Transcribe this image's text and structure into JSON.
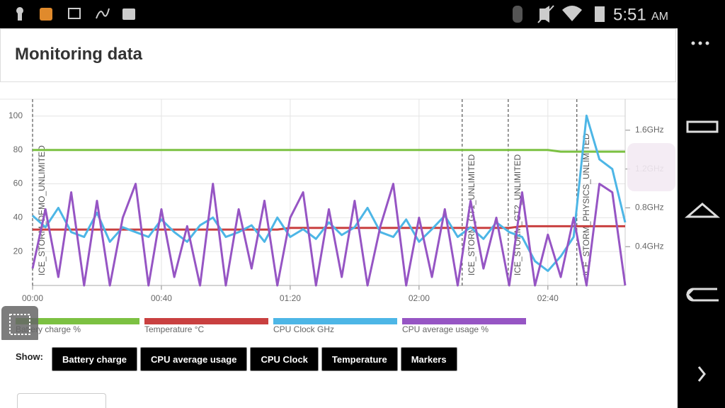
{
  "status_bar": {
    "time": "5:51",
    "meridiem": "AM"
  },
  "header": {
    "title": "Monitoring data"
  },
  "chart_data": {
    "type": "line",
    "x": [
      0,
      4,
      8,
      12,
      16,
      20,
      24,
      28,
      32,
      36,
      40,
      44,
      48,
      52,
      56,
      60,
      64,
      68,
      72,
      76,
      80,
      84,
      88,
      92,
      96,
      100,
      104,
      108,
      112,
      116,
      120,
      124,
      128,
      132,
      136,
      140,
      144,
      148,
      152,
      156,
      160,
      164,
      168,
      172,
      176,
      180,
      184
    ],
    "xlim": [
      0,
      184
    ],
    "xticks": [
      {
        "value": 0,
        "label": "00:00"
      },
      {
        "value": 40,
        "label": "00:40"
      },
      {
        "value": 80,
        "label": "01:20"
      },
      {
        "value": 120,
        "label": "02:00"
      },
      {
        "value": 160,
        "label": "02:40"
      }
    ],
    "ylim": [
      0,
      110
    ],
    "yticks": [
      20,
      40,
      60,
      80,
      100
    ],
    "y2lim": [
      0,
      1.92
    ],
    "y2ticks": [
      {
        "value": 0.4,
        "label": "0.4GHz"
      },
      {
        "value": 0.8,
        "label": "0.8GHz"
      },
      {
        "value": 1.2,
        "label": "1.2GHz"
      },
      {
        "value": 1.6,
        "label": "1.6GHz"
      }
    ],
    "grid": true,
    "series": [
      {
        "name": "Battery charge %",
        "color": "#7cc142",
        "values": [
          80,
          80,
          80,
          80,
          80,
          80,
          80,
          80,
          80,
          80,
          80,
          80,
          80,
          80,
          80,
          80,
          80,
          80,
          80,
          80,
          80,
          80,
          80,
          80,
          80,
          80,
          80,
          80,
          80,
          80,
          80,
          80,
          80,
          80,
          80,
          80,
          80,
          80,
          80,
          80,
          80,
          79,
          79,
          79,
          79,
          79,
          79
        ]
      },
      {
        "name": "Temperature °C",
        "color": "#c94040",
        "values": [
          33,
          33,
          33,
          33,
          33,
          33,
          33,
          33,
          33,
          33,
          33,
          33,
          33,
          33,
          33,
          33,
          33,
          33,
          33,
          33,
          34,
          34,
          34,
          34,
          34,
          34,
          34,
          34,
          34,
          34,
          34,
          34,
          34,
          34,
          34,
          34,
          34,
          34,
          35,
          35,
          35,
          35,
          35,
          35,
          35,
          35,
          35
        ]
      },
      {
        "name": "CPU Clock GHz",
        "color": "#4db6e6",
        "axis": "y2",
        "values": [
          0.72,
          0.6,
          0.8,
          0.55,
          0.5,
          0.75,
          0.45,
          0.6,
          0.55,
          0.5,
          0.68,
          0.55,
          0.45,
          0.62,
          0.7,
          0.5,
          0.55,
          0.62,
          0.45,
          0.7,
          0.5,
          0.58,
          0.48,
          0.65,
          0.52,
          0.6,
          0.8,
          0.55,
          0.5,
          0.68,
          0.45,
          0.58,
          0.72,
          0.5,
          0.6,
          0.48,
          0.65,
          0.55,
          0.5,
          0.25,
          0.15,
          0.3,
          0.5,
          1.75,
          1.3,
          1.2,
          0.65
        ]
      },
      {
        "name": "CPU average usage %",
        "color": "#9655c4",
        "values": [
          10,
          45,
          5,
          55,
          0,
          50,
          0,
          40,
          60,
          0,
          45,
          5,
          35,
          0,
          60,
          0,
          45,
          10,
          50,
          0,
          40,
          55,
          0,
          45,
          5,
          50,
          0,
          35,
          60,
          0,
          40,
          5,
          45,
          0,
          50,
          10,
          40,
          0,
          55,
          0,
          30,
          5,
          40,
          0,
          60,
          55,
          0
        ]
      }
    ],
    "markers": [
      {
        "x": 0,
        "label": "ICE_STORM_DEMO_UNLIMITED"
      },
      {
        "x": 133.4,
        "label": "ICE_STORM_GT1_UNLIMITED"
      },
      {
        "x": 147.7,
        "label": "ICE_STORM_GT2_UNLIMITED"
      },
      {
        "x": 169,
        "label": "ICE_STORM_PHYSICS_UNLIMITED"
      }
    ]
  },
  "controls": {
    "label": "Show:",
    "buttons": [
      "Battery charge",
      "CPU average usage",
      "CPU Clock",
      "Temperature",
      "Markers"
    ]
  }
}
